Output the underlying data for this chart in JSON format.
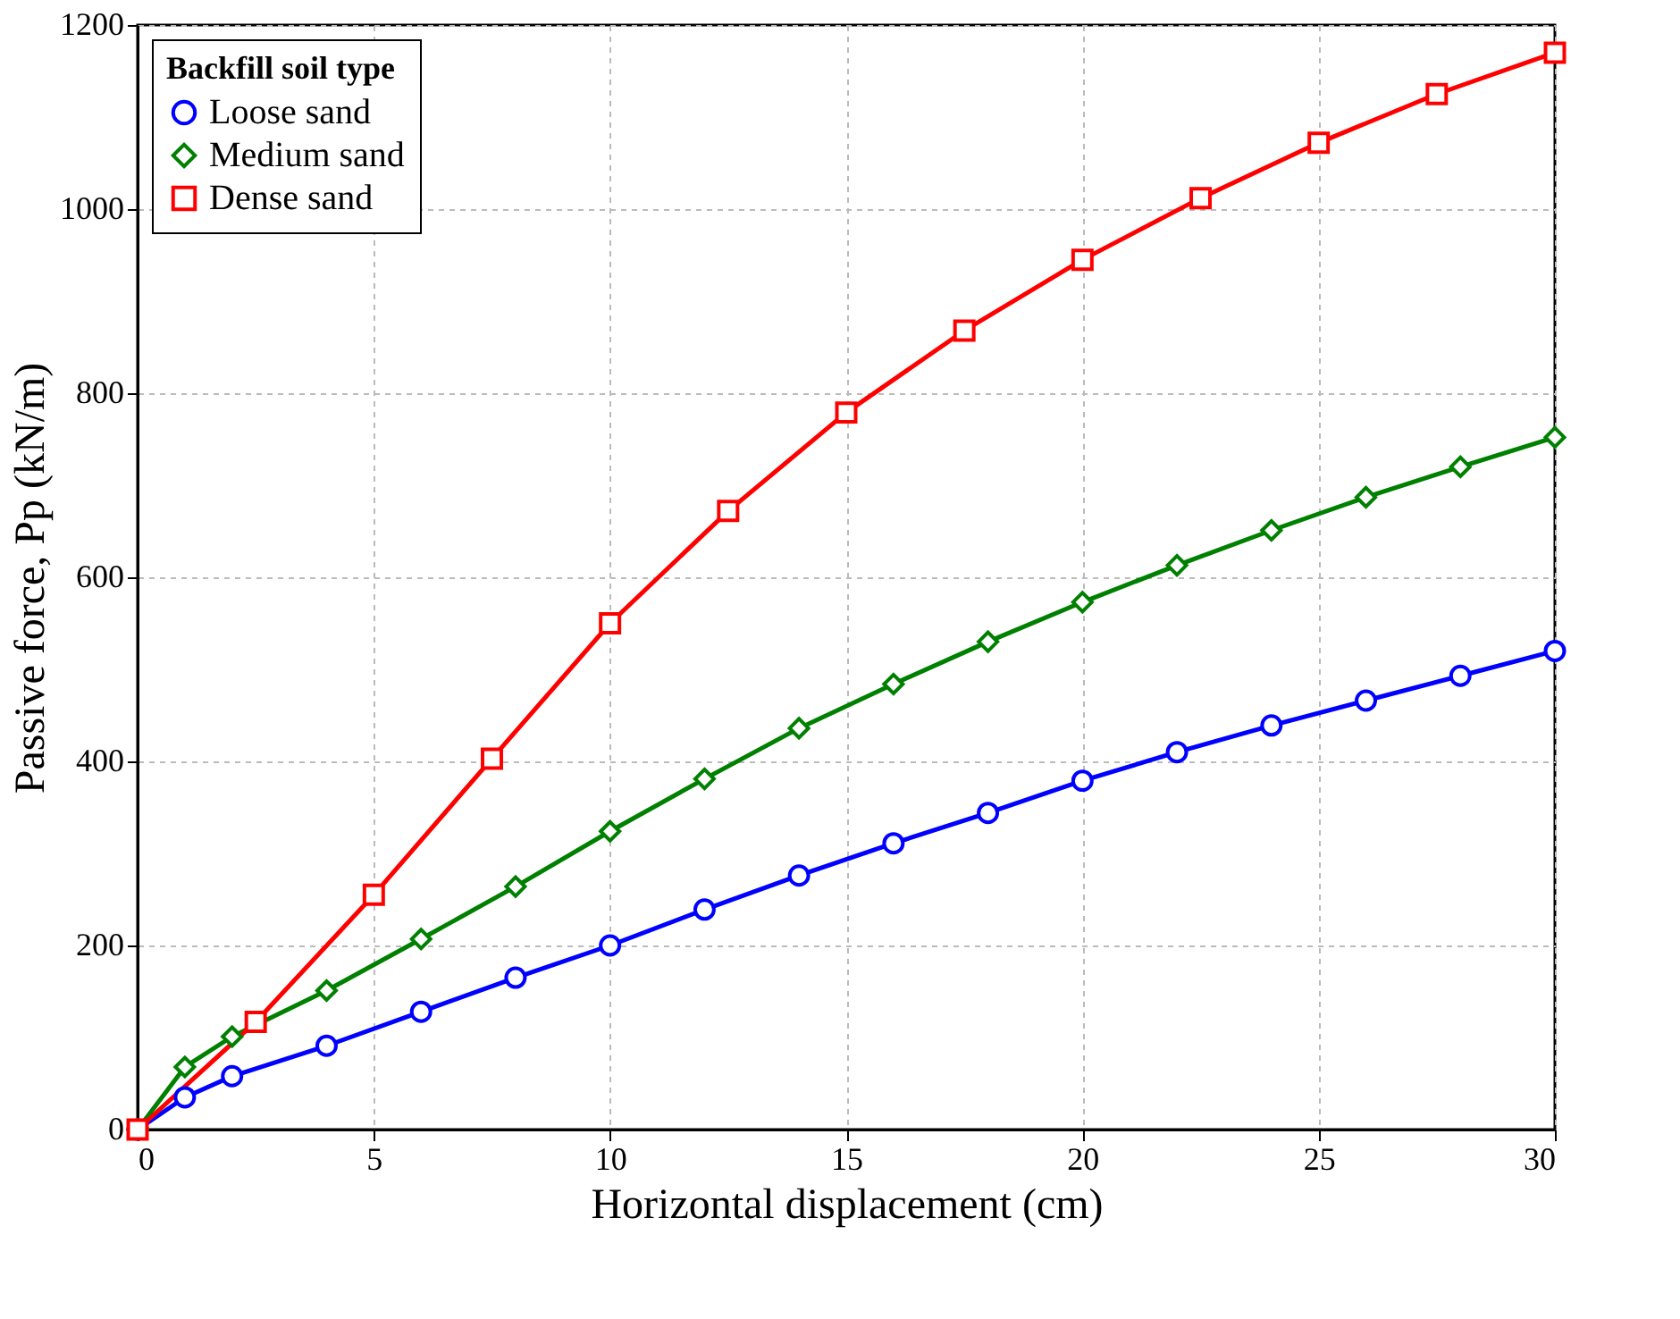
{
  "chart_data": {
    "type": "line",
    "xlabel": "Horizontal displacement (cm)",
    "ylabel": "Passive force, Pp (kN/m)",
    "legend_title": "Backfill soil type",
    "xlim": [
      0,
      30
    ],
    "ylim": [
      0,
      1200
    ],
    "xticks": [
      0,
      5,
      10,
      15,
      20,
      25,
      30
    ],
    "yticks": [
      0,
      200,
      400,
      600,
      800,
      1000,
      1200
    ],
    "grid": true,
    "legend": "top left",
    "line_style": "solid",
    "series": [
      {
        "name": "Loose sand",
        "color": "#0000ff",
        "marker": "circle",
        "x": [
          0,
          1,
          2,
          4,
          6,
          8,
          10,
          12,
          14,
          16,
          18,
          20,
          22,
          24,
          26,
          28,
          30
        ],
        "values": [
          0,
          35,
          58,
          91,
          128,
          165,
          200,
          239,
          276,
          311,
          344,
          379,
          410,
          439,
          466,
          493,
          520
        ]
      },
      {
        "name": "Medium sand",
        "color": "#008000",
        "marker": "diamond",
        "x": [
          0,
          1,
          2,
          4,
          6,
          8,
          10,
          12,
          14,
          16,
          18,
          20,
          22,
          24,
          26,
          28,
          30
        ],
        "values": [
          0,
          68,
          101,
          151,
          207,
          264,
          324,
          381,
          436,
          484,
          530,
          573,
          613,
          651,
          687,
          720,
          752
        ]
      },
      {
        "name": "Dense sand",
        "color": "#ff0000",
        "marker": "square",
        "x": [
          0,
          2.5,
          5,
          7.5,
          10,
          12.5,
          15,
          17.5,
          20,
          22.5,
          25,
          27.5,
          30
        ],
        "values": [
          0,
          117,
          255,
          403,
          550,
          672,
          779,
          868,
          945,
          1012,
          1072,
          1125,
          1170
        ]
      }
    ]
  }
}
